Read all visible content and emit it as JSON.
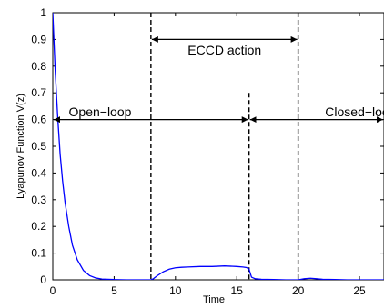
{
  "chart_data": {
    "type": "line",
    "title": "",
    "xlabel": "Time",
    "ylabel": "Lyapunov Function V(z)",
    "xlim": [
      0,
      27
    ],
    "ylim": [
      0,
      1
    ],
    "xticks": [
      0,
      5,
      10,
      15,
      20,
      25
    ],
    "yticks": [
      0,
      0.1,
      0.2,
      0.3,
      0.4,
      0.5,
      0.6,
      0.7,
      0.8,
      0.9,
      1
    ],
    "ytick_labels": [
      "0",
      "0.1",
      "0.2",
      "0.3",
      "0.4",
      "0.5",
      "0.6",
      "0.7",
      "0.8",
      "0.9",
      "1"
    ],
    "grid": false,
    "series": [
      {
        "color": "#0000ff",
        "x": [
          0,
          0.2,
          0.4,
          0.6,
          0.8,
          1.0,
          1.3,
          1.6,
          2.0,
          2.5,
          3.0,
          3.5,
          4.0,
          5.0,
          6.0,
          7.0,
          8.0,
          8.2,
          8.5,
          9.0,
          9.5,
          10.0,
          10.5,
          11.0,
          12.0,
          13.0,
          14.0,
          15.0,
          15.5,
          15.8,
          16.0,
          16.2,
          16.5,
          17.0,
          18.0,
          19.0,
          20.0,
          20.5,
          21.0,
          21.5,
          22.0,
          23.0,
          24.0,
          25.0,
          26.0,
          27.0
        ],
        "y": [
          1.0,
          0.78,
          0.61,
          0.47,
          0.37,
          0.29,
          0.2,
          0.13,
          0.075,
          0.035,
          0.016,
          0.007,
          0.003,
          0.001,
          0.0,
          0.0,
          0.0,
          0.004,
          0.015,
          0.03,
          0.04,
          0.045,
          0.047,
          0.048,
          0.05,
          0.05,
          0.052,
          0.05,
          0.048,
          0.046,
          0.04,
          0.01,
          0.004,
          0.002,
          0.001,
          0.0,
          0.0,
          0.004,
          0.006,
          0.004,
          0.002,
          0.001,
          0.0,
          0.0,
          0.0,
          0.0
        ]
      }
    ],
    "vlines": [
      {
        "x": 8,
        "ymax": 1.0
      },
      {
        "x": 16,
        "ymax": 0.7
      },
      {
        "x": 20,
        "ymax": 1.0
      }
    ],
    "annotations": [
      {
        "text": "ECCD action",
        "x1": 8,
        "x2": 20,
        "y": 0.9,
        "label_x": 14,
        "label_y": 0.86,
        "anchor": "middle"
      },
      {
        "text": "Open−loop",
        "x1": 0,
        "x2": 16,
        "y": 0.6,
        "label_x": 1.3,
        "label_y": 0.63,
        "anchor": "start"
      },
      {
        "text": "Closed−loop",
        "x1": 16,
        "x2": 27,
        "y": 0.6,
        "label_x": 22.2,
        "label_y": 0.63,
        "anchor": "start"
      }
    ]
  }
}
